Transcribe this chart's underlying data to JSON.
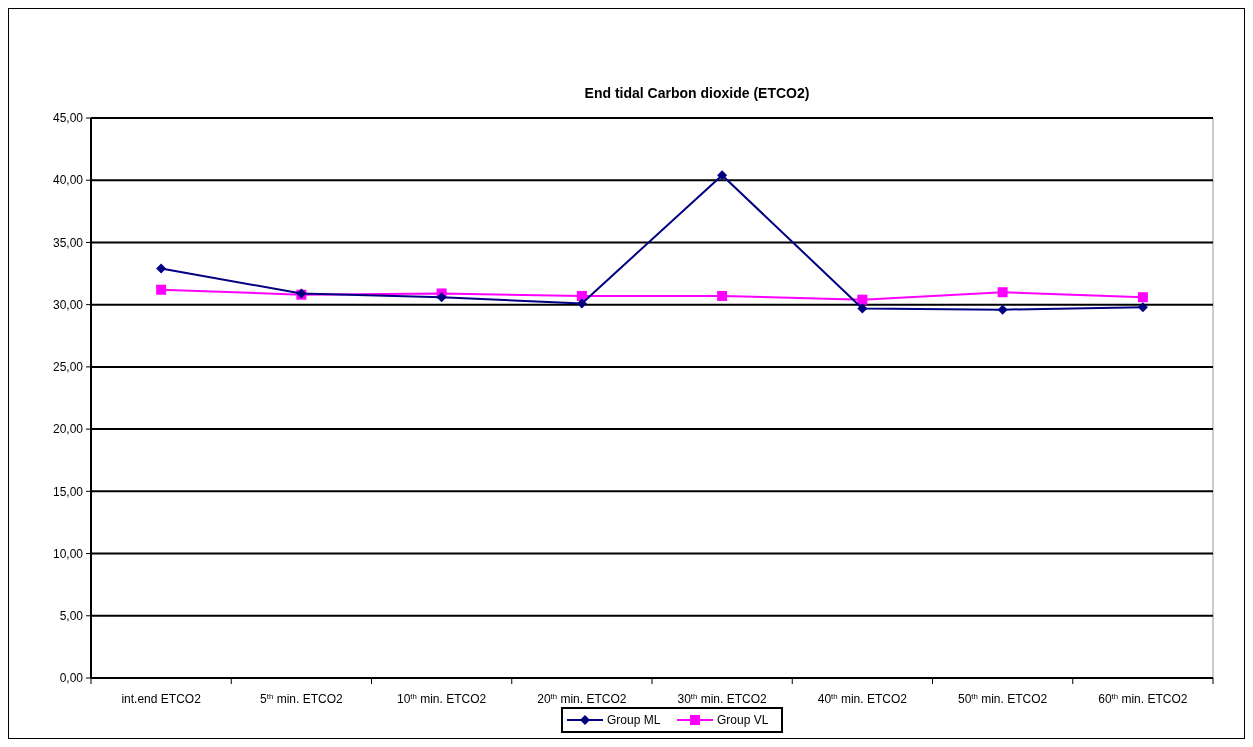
{
  "chart_data": {
    "type": "line",
    "title": "End tidal Carbon dioxide (ETCO2)",
    "categories": [
      "int.end ETCO2",
      "5$^{th}$ min. ETCO2",
      "10$^{th}$ min. ETCO2",
      "20$^{th}$ min. ETCO2",
      "30$^{th}$ min. ETCO2",
      "40$^{th}$ min. ETCO2",
      "50$^{th}$ min. ETCO2",
      "60$^{th}$ min. ETCO2"
    ],
    "series": [
      {
        "name": "Group ML",
        "color": "#000080",
        "marker": "diamond",
        "values": [
          32.9,
          30.9,
          30.6,
          30.1,
          40.4,
          29.7,
          29.6,
          29.8
        ]
      },
      {
        "name": "Group VL",
        "color": "#ff00ff",
        "marker": "square",
        "values": [
          31.2,
          30.8,
          30.9,
          30.7,
          30.7,
          30.4,
          31.0,
          30.6
        ]
      }
    ],
    "ylim": [
      0,
      45
    ],
    "yticks": [
      {
        "value": 0,
        "label": "0,00"
      },
      {
        "value": 5,
        "label": "5,00"
      },
      {
        "value": 10,
        "label": "10,00"
      },
      {
        "value": 15,
        "label": "15,00"
      },
      {
        "value": 20,
        "label": "20,00"
      },
      {
        "value": 25,
        "label": "25,00"
      },
      {
        "value": 30,
        "label": "30,00"
      },
      {
        "value": 35,
        "label": "35,00"
      },
      {
        "value": 40,
        "label": "40,00"
      },
      {
        "value": 45,
        "label": "45,00"
      }
    ],
    "grid": "y",
    "legend": "bottom"
  }
}
